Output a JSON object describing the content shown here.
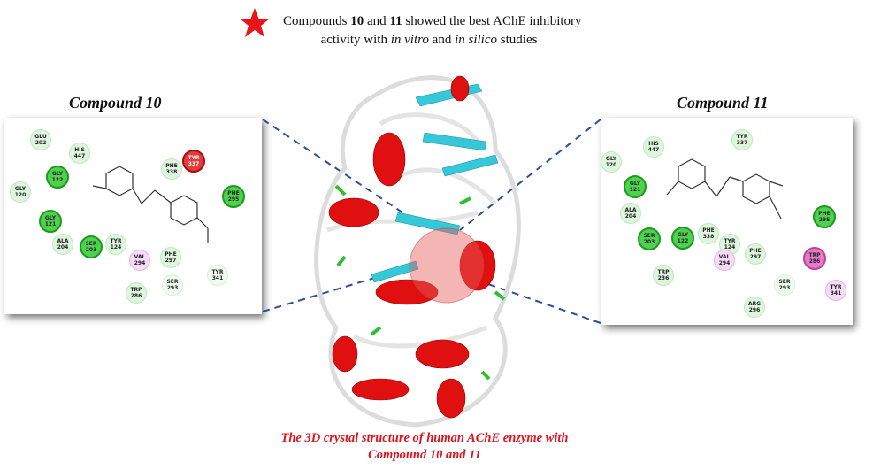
{
  "header": {
    "line1_pre": "Compounds ",
    "line1_b1": "10",
    "line1_mid": " and ",
    "line1_b2": "11",
    "line1_post": " showed the best AChE inhibitory",
    "line2_pre": "activity with ",
    "line2_i1": "in vitro",
    "line2_mid": " and ",
    "line2_i2": "in silico",
    "line2_post": " studies",
    "star_icon": "red-star",
    "star_color": "#e8151b"
  },
  "left_panel": {
    "title": "Compound 10",
    "residues": [
      {
        "label": "GLU\n202",
        "type": "light"
      },
      {
        "label": "HIS\n447",
        "type": "light"
      },
      {
        "label": "TYR\n337",
        "type": "red"
      },
      {
        "label": "PHE\n338",
        "type": "light"
      },
      {
        "label": "GLY\n122",
        "type": "green"
      },
      {
        "label": "GLY\n120",
        "type": "light"
      },
      {
        "label": "PHE\n295",
        "type": "green"
      },
      {
        "label": "GLY\n121",
        "type": "green"
      },
      {
        "label": "ALA\n204",
        "type": "light"
      },
      {
        "label": "SER\n203",
        "type": "green"
      },
      {
        "label": "TYR\n124",
        "type": "light"
      },
      {
        "label": "VAL\n294",
        "type": "pink"
      },
      {
        "label": "PHE\n297",
        "type": "light"
      },
      {
        "label": "SER\n293",
        "type": "faint"
      },
      {
        "label": "TYR\n341",
        "type": "faint"
      },
      {
        "label": "TRP\n286",
        "type": "light"
      }
    ]
  },
  "right_panel": {
    "title": "Compound 11",
    "residues": [
      {
        "label": "HIS\n447",
        "type": "light"
      },
      {
        "label": "TYR\n337",
        "type": "light"
      },
      {
        "label": "GLY\n120",
        "type": "light"
      },
      {
        "label": "GLY\n121",
        "type": "green"
      },
      {
        "label": "ALA\n204",
        "type": "light"
      },
      {
        "label": "SER\n203",
        "type": "green"
      },
      {
        "label": "GLY\n122",
        "type": "green"
      },
      {
        "label": "PHE\n338",
        "type": "light"
      },
      {
        "label": "TYR\n124",
        "type": "light"
      },
      {
        "label": "PHE\n297",
        "type": "light"
      },
      {
        "label": "VAL\n294",
        "type": "pink"
      },
      {
        "label": "PHE\n295",
        "type": "green"
      },
      {
        "label": "TRP\n286",
        "type": "pinkd"
      },
      {
        "label": "SER\n293",
        "type": "faint"
      },
      {
        "label": "TYR\n341",
        "type": "pink"
      },
      {
        "label": "TRP\n236",
        "type": "light"
      },
      {
        "label": "ARG\n296",
        "type": "light"
      }
    ]
  },
  "caption": {
    "line1": "The 3D crystal structure of human AChE enzyme with",
    "line2": "Compound 10 and 11"
  },
  "colors": {
    "helix": "#e01010",
    "sheet": "#35c8d8",
    "turn": "#2fbf2f",
    "coil": "#e8e8e8",
    "caption": "#e0141e",
    "connector": "#2a4f9a"
  }
}
